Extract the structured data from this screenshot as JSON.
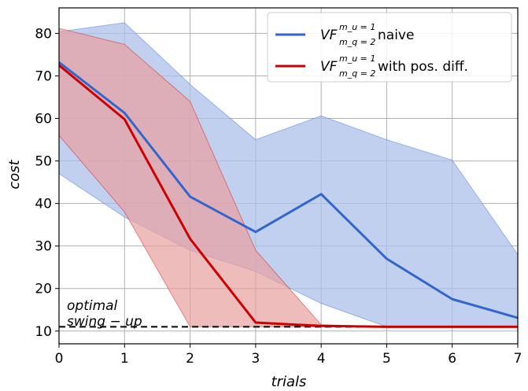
{
  "chart_data": {
    "type": "line",
    "xlabel": "trials",
    "ylabel": "cost",
    "xlim": [
      0,
      7
    ],
    "ylim": [
      7,
      86
    ],
    "xticks": [
      "0",
      "1",
      "2",
      "3",
      "4",
      "5",
      "6",
      "7"
    ],
    "yticks": [
      "10",
      "20",
      "30",
      "40",
      "50",
      "60",
      "70",
      "80"
    ],
    "grid": true,
    "legend_position": "top-right",
    "x": [
      0,
      1,
      2,
      3,
      4,
      5,
      6,
      7
    ],
    "series": [
      {
        "name": "naive",
        "legend_main": "VF",
        "legend_sup": "m_u = 1",
        "legend_sub": "m_q = 2",
        "legend_rest": " naive",
        "color": "#3366cc",
        "fill": "#aec0ea",
        "values": [
          73.2,
          61.3,
          41.6,
          33.3,
          42.2,
          27.0,
          17.5,
          13.1
        ],
        "upper": [
          80.4,
          82.5,
          68.0,
          55.0,
          60.6,
          55.0,
          50.2,
          28.0
        ],
        "lower": [
          47.0,
          36.8,
          29.0,
          24.0,
          16.5,
          11.0,
          11.0,
          11.0
        ]
      },
      {
        "name": "with pos. diff.",
        "legend_main": "VF",
        "legend_sup": "m_u = 1",
        "legend_sub": "m_q = 2",
        "legend_rest": " with pos. diff.",
        "color": "#cc0000",
        "fill": "#e8a0a0",
        "values": [
          72.5,
          59.8,
          31.7,
          12.0,
          11.2,
          11.0,
          11.0,
          11.0
        ],
        "upper": [
          81.2,
          77.4,
          64.0,
          29.0,
          11.5,
          11.0,
          11.0,
          11.0
        ],
        "lower": [
          56.0,
          38.0,
          11.0,
          11.0,
          11.0,
          11.0,
          11.0,
          11.0
        ]
      }
    ],
    "reference_line": {
      "y": 11,
      "style": "dashed",
      "color": "#000000"
    },
    "annotations": [
      "optimal",
      "swing − up"
    ]
  }
}
